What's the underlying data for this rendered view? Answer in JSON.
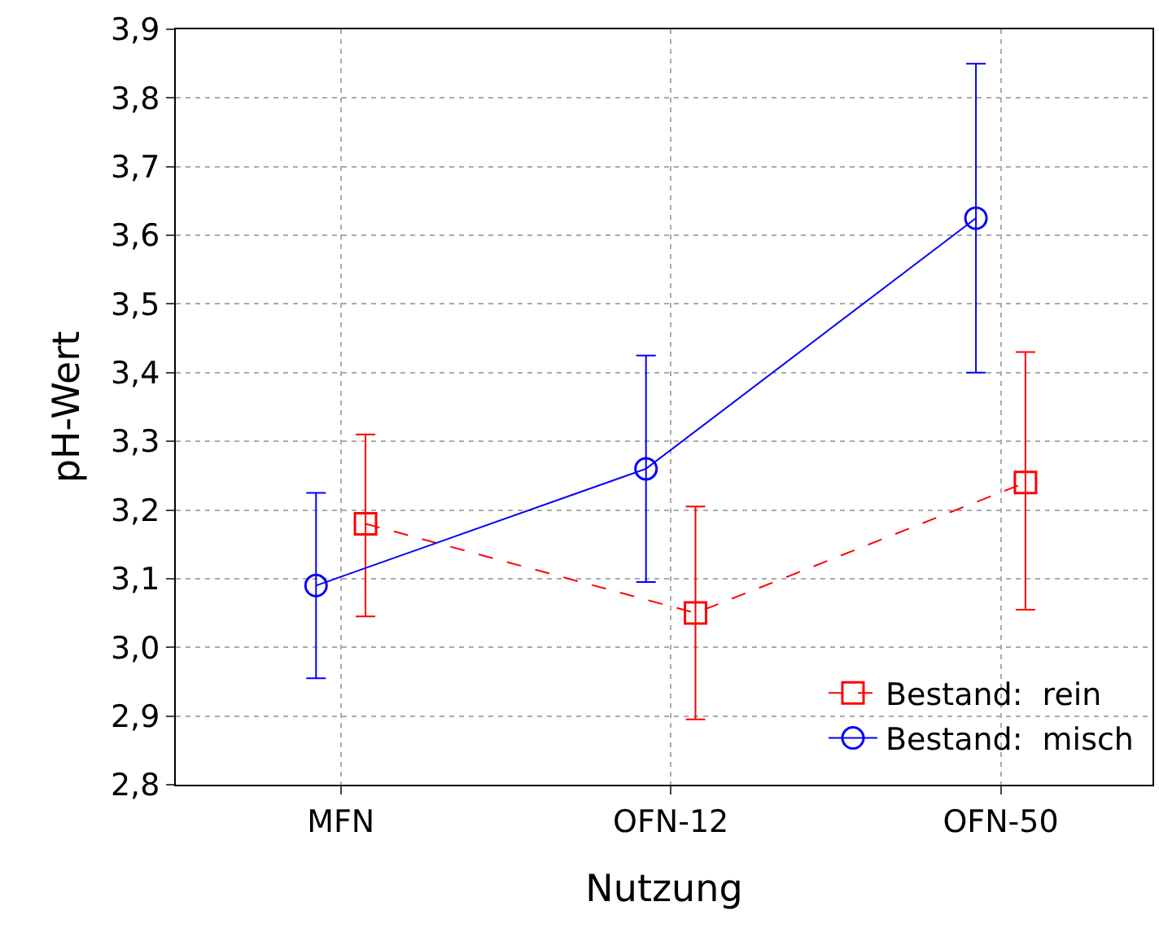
{
  "chart_data": {
    "type": "line",
    "xlabel": "Nutzung",
    "ylabel": "pH-Wert",
    "categories": [
      "MFN",
      "OFN-12",
      "OFN-50"
    ],
    "series": [
      {
        "name": "Bestand:  rein",
        "color": "#ff0000",
        "marker": "square",
        "line_style": "dashed",
        "values": [
          3.18,
          3.05,
          3.24
        ],
        "errors": [
          [
            3.045,
            3.31
          ],
          [
            2.895,
            3.205
          ],
          [
            3.055,
            3.43
          ]
        ]
      },
      {
        "name": "Bestand:  misch",
        "color": "#0000ff",
        "marker": "circle",
        "line_style": "solid",
        "values": [
          3.09,
          3.26,
          3.625
        ],
        "errors": [
          [
            2.955,
            3.225
          ],
          [
            3.095,
            3.425
          ],
          [
            3.4,
            3.85
          ]
        ]
      }
    ],
    "ylim": [
      2.8,
      3.9
    ],
    "yticks": [
      {
        "value": 2.8,
        "label": "2,8"
      },
      {
        "value": 2.9,
        "label": "2,9"
      },
      {
        "value": 3.0,
        "label": "3,0"
      },
      {
        "value": 3.1,
        "label": "3,1"
      },
      {
        "value": 3.2,
        "label": "3,2"
      },
      {
        "value": 3.3,
        "label": "3,3"
      },
      {
        "value": 3.4,
        "label": "3,4"
      },
      {
        "value": 3.5,
        "label": "3,5"
      },
      {
        "value": 3.6,
        "label": "3,6"
      },
      {
        "value": 3.7,
        "label": "3,7"
      },
      {
        "value": 3.8,
        "label": "3,8"
      },
      {
        "value": 3.9,
        "label": "3,9"
      }
    ],
    "grid": true,
    "legend": "bottom right"
  }
}
